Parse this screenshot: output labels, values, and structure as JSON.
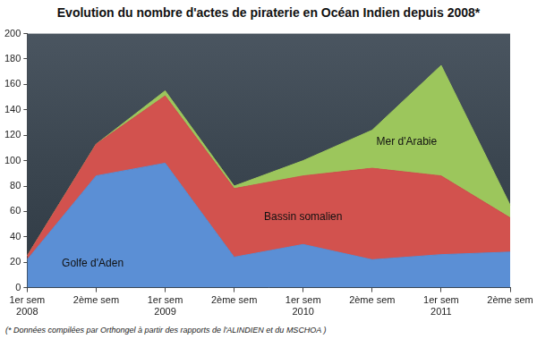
{
  "chart_data": {
    "type": "area",
    "title": "Evolution du nombre d'actes de piraterie en Océan Indien depuis 2008*",
    "annotations": [
      "(* Données compilées par Orthongel à partir des rapports de l'ALINDIEN et du MSCHOA )"
    ],
    "categories": [
      "1er sem\n2008",
      "2ème sem",
      "1er sem\n2009",
      "2ème sem",
      "1er sem\n2010",
      "2ème sem",
      "1er sem\n2011",
      "2ème sem"
    ],
    "series": [
      {
        "name": "Golfe d'Aden",
        "color": "#5b8fd5",
        "values": [
          22,
          88,
          98,
          24,
          34,
          22,
          26,
          28
        ]
      },
      {
        "name": "Bassin somalien",
        "color": "#d2524e",
        "values": [
          3,
          25,
          53,
          54,
          54,
          72,
          62,
          27
        ]
      },
      {
        "name": "Mer d'Arabie",
        "color": "#9cc65c",
        "values": [
          0,
          0,
          4,
          2,
          12,
          30,
          87,
          10
        ]
      }
    ],
    "stacked": true,
    "ylim": [
      0,
      200
    ],
    "yticks": [
      0,
      20,
      40,
      60,
      80,
      100,
      120,
      140,
      160,
      180,
      200
    ],
    "grid": false
  }
}
